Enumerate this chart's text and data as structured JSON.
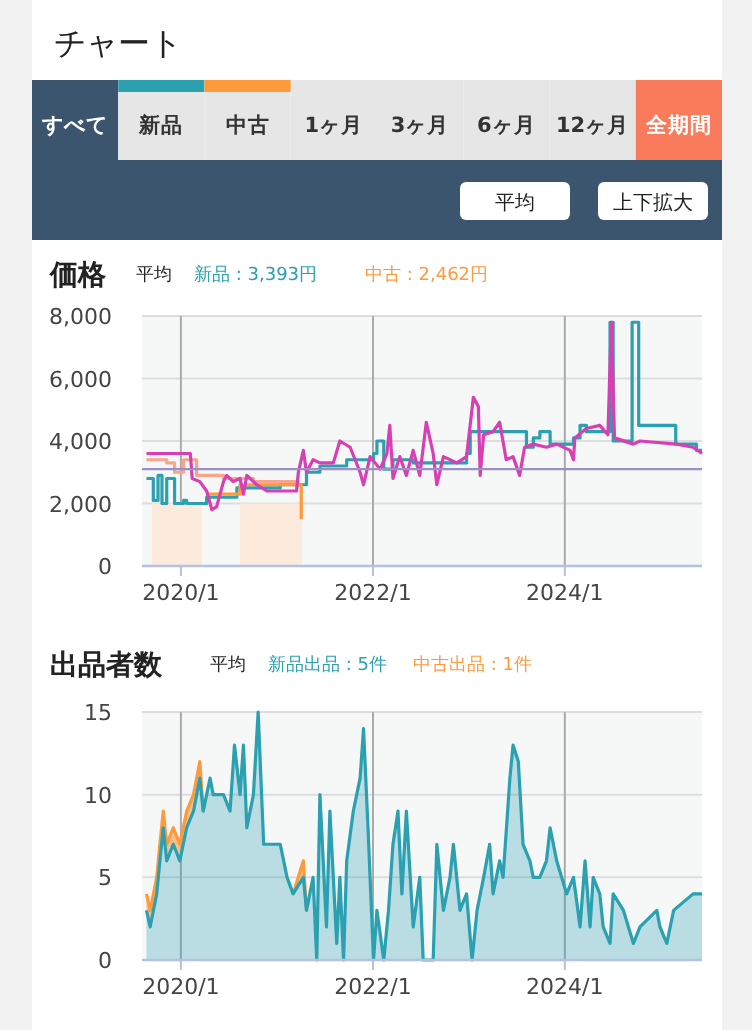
{
  "chart_data": [
    {
      "type": "other",
      "title": "チャート",
      "annotations": [
        "すべて",
        "新品",
        "中古",
        "1ヶ月",
        "3ヶ月",
        "6ヶ月",
        "12ヶ月",
        "全期間",
        "平均",
        "上下拡大"
      ]
    },
    {
      "type": "line",
      "title": "価格",
      "legend_title": "平均",
      "legend": "top",
      "grid": true,
      "xlim": [
        "2019-08-06",
        "2025-06-06"
      ],
      "xticks": [
        {
          "value": "2020-01-01",
          "label": "2020/1"
        },
        {
          "value": "2022-01-01",
          "label": "2022/1"
        },
        {
          "value": "2024-01-01",
          "label": "2024/1"
        }
      ],
      "ylim": [
        0,
        8000
      ],
      "yticks": [
        {
          "value": 0,
          "label": "0"
        },
        {
          "value": 2000,
          "label": "2,000"
        },
        {
          "value": 4000,
          "label": "4,000"
        },
        {
          "value": 6000,
          "label": "6,000"
        },
        {
          "value": 8000,
          "label": "8,000"
        }
      ],
      "ref_lines": [
        {
          "axis": "y",
          "value": 3100,
          "color": "#9b8fc6"
        }
      ],
      "series": [
        {
          "type": "area",
          "color": "#fcebdd",
          "x": [
            "2019-09-13",
            "2020-03-21",
            "2020-06-01",
            "2020-08-13",
            "2021-04-06"
          ],
          "values": [
            2000,
            2000,
            null,
            2000,
            2000
          ]
        },
        {
          "type": "step",
          "color": "#f9a58c",
          "x": [
            "2019-08-23",
            "2019-11-08",
            "2019-12-08",
            "2020-01-11",
            "2020-03-01",
            "2020-06-11",
            "2020-10-03",
            "2021-03-28"
          ],
          "values": [
            3400,
            3300,
            3000,
            3400,
            2900,
            2800,
            2700,
            2700
          ]
        },
        {
          "type": "step",
          "name": "新品 : 3,393円",
          "color": "#2aa0b0",
          "x": [
            "2019-08-23",
            "2019-09-18",
            "2019-10-06",
            "2019-10-21",
            "2019-11-08",
            "2019-12-08",
            "2020-01-11",
            "2020-01-23",
            "2020-03-26",
            "2020-04-08",
            "2020-07-06",
            "2020-08-01",
            "2020-11-23",
            "2021-01-13",
            "2021-03-28",
            "2021-04-23",
            "2021-06-13",
            "2021-09-23",
            "2022-01-03",
            "2022-01-16",
            "2022-02-11",
            "2022-03-18",
            "2022-06-03",
            "2022-12-23",
            "2023-01-06",
            "2023-04-03",
            "2023-08-08",
            "2023-09-03",
            "2023-09-28",
            "2023-11-06",
            "2024-02-03",
            "2024-02-28",
            "2024-03-23",
            "2024-06-08",
            "2024-06-21",
            "2024-07-03",
            "2024-09-06",
            "2024-09-13",
            "2024-10-08",
            "2025-02-26",
            "2025-05-03",
            "2025-05-16",
            "2025-06-06"
          ],
          "values": [
            2800,
            2100,
            2900,
            2000,
            2800,
            2000,
            2100,
            2000,
            2000,
            2200,
            2200,
            2500,
            2500,
            2600,
            2600,
            3000,
            3200,
            3400,
            3600,
            4000,
            3100,
            3400,
            3300,
            3600,
            4300,
            4300,
            3800,
            4100,
            4300,
            3900,
            4100,
            4500,
            4300,
            4300,
            7800,
            4000,
            4000,
            7800,
            4500,
            3900,
            3900,
            3700,
            3700
          ]
        },
        {
          "type": "step",
          "name": "中古 : 2,462円",
          "color": "#ff9a3c",
          "x": [
            "2020-04-08",
            "2020-07-06",
            "2020-08-13",
            "2021-03-16",
            "2021-04-03"
          ],
          "values": [
            2300,
            2300,
            2600,
            2600,
            1500
          ]
        },
        {
          "type": "line",
          "color": "#d93fb4",
          "x": [
            "2019-08-23",
            "2020-02-06",
            "2020-02-13",
            "2020-03-13",
            "2020-04-08",
            "2020-04-28",
            "2020-05-16",
            "2020-06-11",
            "2020-06-23",
            "2020-07-18",
            "2020-08-13",
            "2020-08-26",
            "2020-09-08",
            "2020-10-16",
            "2020-11-23",
            "2021-03-16",
            "2021-03-23",
            "2021-04-11",
            "2021-04-23",
            "2021-05-18",
            "2021-06-13",
            "2021-08-03",
            "2021-08-28",
            "2021-10-06",
            "2021-11-13",
            "2021-11-26",
            "2021-12-21",
            "2022-01-28",
            "2022-02-23",
            "2022-03-06",
            "2022-03-18",
            "2022-04-13",
            "2022-05-08",
            "2022-06-03",
            "2022-06-28",
            "2022-07-23",
            "2022-08-18",
            "2022-09-01",
            "2022-09-26",
            "2022-11-16",
            "2022-12-23",
            "2023-01-18",
            "2023-02-06",
            "2023-02-13",
            "2023-02-26",
            "2023-04-03",
            "2023-04-28",
            "2023-05-23",
            "2023-06-18",
            "2023-07-13",
            "2023-08-01",
            "2023-09-03",
            "2023-10-23",
            "2023-12-01",
            "2024-01-21",
            "2024-02-03",
            "2024-02-08",
            "2024-03-23",
            "2024-05-13",
            "2024-06-13",
            "2024-06-26",
            "2024-07-08",
            "2024-09-18",
            "2024-10-13",
            "2025-03-01",
            "2025-05-03",
            "2025-06-06"
          ],
          "values": [
            3600,
            3600,
            2800,
            2700,
            2400,
            1800,
            1900,
            2700,
            2900,
            2700,
            2800,
            2300,
            2900,
            2600,
            2400,
            2400,
            3000,
            3700,
            3000,
            3400,
            3300,
            3300,
            4000,
            3800,
            3000,
            2600,
            3500,
            3100,
            3600,
            4500,
            2800,
            3500,
            2900,
            3700,
            2900,
            4600,
            3600,
            2600,
            3500,
            3300,
            3500,
            5400,
            5100,
            2900,
            4200,
            4300,
            4600,
            3400,
            3500,
            2900,
            3800,
            3900,
            3800,
            3900,
            3700,
            3400,
            4100,
            4400,
            4500,
            4200,
            7800,
            4100,
            3900,
            4000,
            3900,
            3800,
            3600
          ]
        }
      ]
    },
    {
      "type": "area",
      "title": "出品者数",
      "legend_title": "平均",
      "legend": "top",
      "grid": true,
      "stacked": true,
      "xlim": [
        "2019-08-06",
        "2025-06-06"
      ],
      "xticks": [
        {
          "value": "2020-01-01",
          "label": "2020/1"
        },
        {
          "value": "2022-01-01",
          "label": "2022/1"
        },
        {
          "value": "2024-01-01",
          "label": "2024/1"
        }
      ],
      "ylim": [
        0,
        15
      ],
      "yticks": [
        0,
        5,
        10,
        15
      ],
      "x": [
        "2019-08-23",
        "2019-09-06",
        "2019-10-01",
        "2019-10-13",
        "2019-10-26",
        "2019-11-08",
        "2019-12-03",
        "2019-12-28",
        "2020-01-23",
        "2020-02-18",
        "2020-03-13",
        "2020-03-26",
        "2020-04-21",
        "2020-05-03",
        "2020-06-11",
        "2020-07-06",
        "2020-07-23",
        "2020-08-13",
        "2020-08-26",
        "2020-09-08",
        "2020-10-03",
        "2020-10-21",
        "2020-11-11",
        "2021-01-13",
        "2021-02-08",
        "2021-03-03",
        "2021-04-11",
        "2021-04-23",
        "2021-05-18",
        "2021-06-01",
        "2021-06-13",
        "2021-07-08",
        "2021-07-21",
        "2021-08-16",
        "2021-08-28",
        "2021-09-11",
        "2021-09-23",
        "2021-10-18",
        "2021-11-13",
        "2021-11-26",
        "2021-12-13",
        "2022-01-03",
        "2022-01-16",
        "2022-02-11",
        "2022-03-01",
        "2022-03-18",
        "2022-04-06",
        "2022-04-21",
        "2022-05-08",
        "2022-06-03",
        "2022-06-28",
        "2022-07-11",
        "2022-08-18",
        "2022-09-01",
        "2022-09-26",
        "2022-10-21",
        "2022-11-03",
        "2022-11-28",
        "2022-12-23",
        "2023-01-13",
        "2023-02-01",
        "2023-02-26",
        "2023-03-21",
        "2023-04-03",
        "2023-04-28",
        "2023-05-11",
        "2023-06-06",
        "2023-06-18",
        "2023-07-08",
        "2023-07-26",
        "2023-08-21",
        "2023-09-03",
        "2023-09-28",
        "2023-10-23",
        "2023-11-06",
        "2023-12-01",
        "2024-01-08",
        "2024-02-03",
        "2024-02-28",
        "2024-03-18",
        "2024-04-06",
        "2024-04-18",
        "2024-05-13",
        "2024-05-26",
        "2024-06-21",
        "2024-07-03",
        "2024-08-11",
        "2024-09-18",
        "2024-10-13",
        "2024-12-16",
        "2024-12-28",
        "2025-01-23",
        "2025-02-18",
        "2025-05-03",
        "2025-06-06"
      ],
      "series": [
        {
          "name": "新品出品 : 5件",
          "color": "#2aa0b0",
          "values": [
            3,
            2,
            4,
            6,
            8,
            6,
            7,
            6,
            8,
            9,
            11,
            9,
            11,
            10,
            10,
            9,
            13,
            10,
            13,
            8,
            10,
            15,
            7,
            7,
            5,
            4,
            5,
            3,
            5,
            0,
            10,
            2,
            9,
            1,
            5,
            0,
            6,
            9,
            11,
            14,
            8,
            0,
            3,
            0,
            3,
            7,
            9,
            4,
            9,
            2,
            5,
            0,
            0,
            7,
            3,
            5,
            7,
            3,
            4,
            0,
            3,
            5,
            7,
            4,
            6,
            5,
            11,
            13,
            12,
            7,
            6,
            5,
            5,
            6,
            8,
            6,
            4,
            5,
            2,
            6,
            2,
            5,
            4,
            2,
            1,
            4,
            3,
            1,
            2,
            3,
            2,
            1,
            3,
            4,
            4
          ]
        },
        {
          "name": "中古出品 : 1件",
          "color": "#ff9a3c",
          "values": [
            1,
            1,
            1,
            1,
            1,
            1,
            1,
            1,
            1,
            1,
            1,
            0,
            null,
            null,
            null,
            null,
            null,
            null,
            null,
            null,
            null,
            null,
            null,
            null,
            null,
            0,
            1,
            0,
            null,
            null,
            null,
            null,
            null,
            null,
            null,
            null,
            null,
            null,
            null,
            null,
            null,
            null,
            null,
            null,
            null,
            null,
            null,
            null,
            null,
            null,
            null,
            null,
            null,
            null,
            null,
            null,
            null,
            null,
            null,
            null,
            null,
            null,
            null,
            null,
            null,
            null,
            null,
            null,
            null,
            null,
            null,
            null,
            null,
            null,
            null,
            null,
            null,
            null,
            null,
            null,
            null,
            null,
            null,
            null,
            null,
            null,
            null,
            null,
            null,
            null,
            null,
            null,
            null,
            null,
            null
          ]
        }
      ]
    }
  ]
}
